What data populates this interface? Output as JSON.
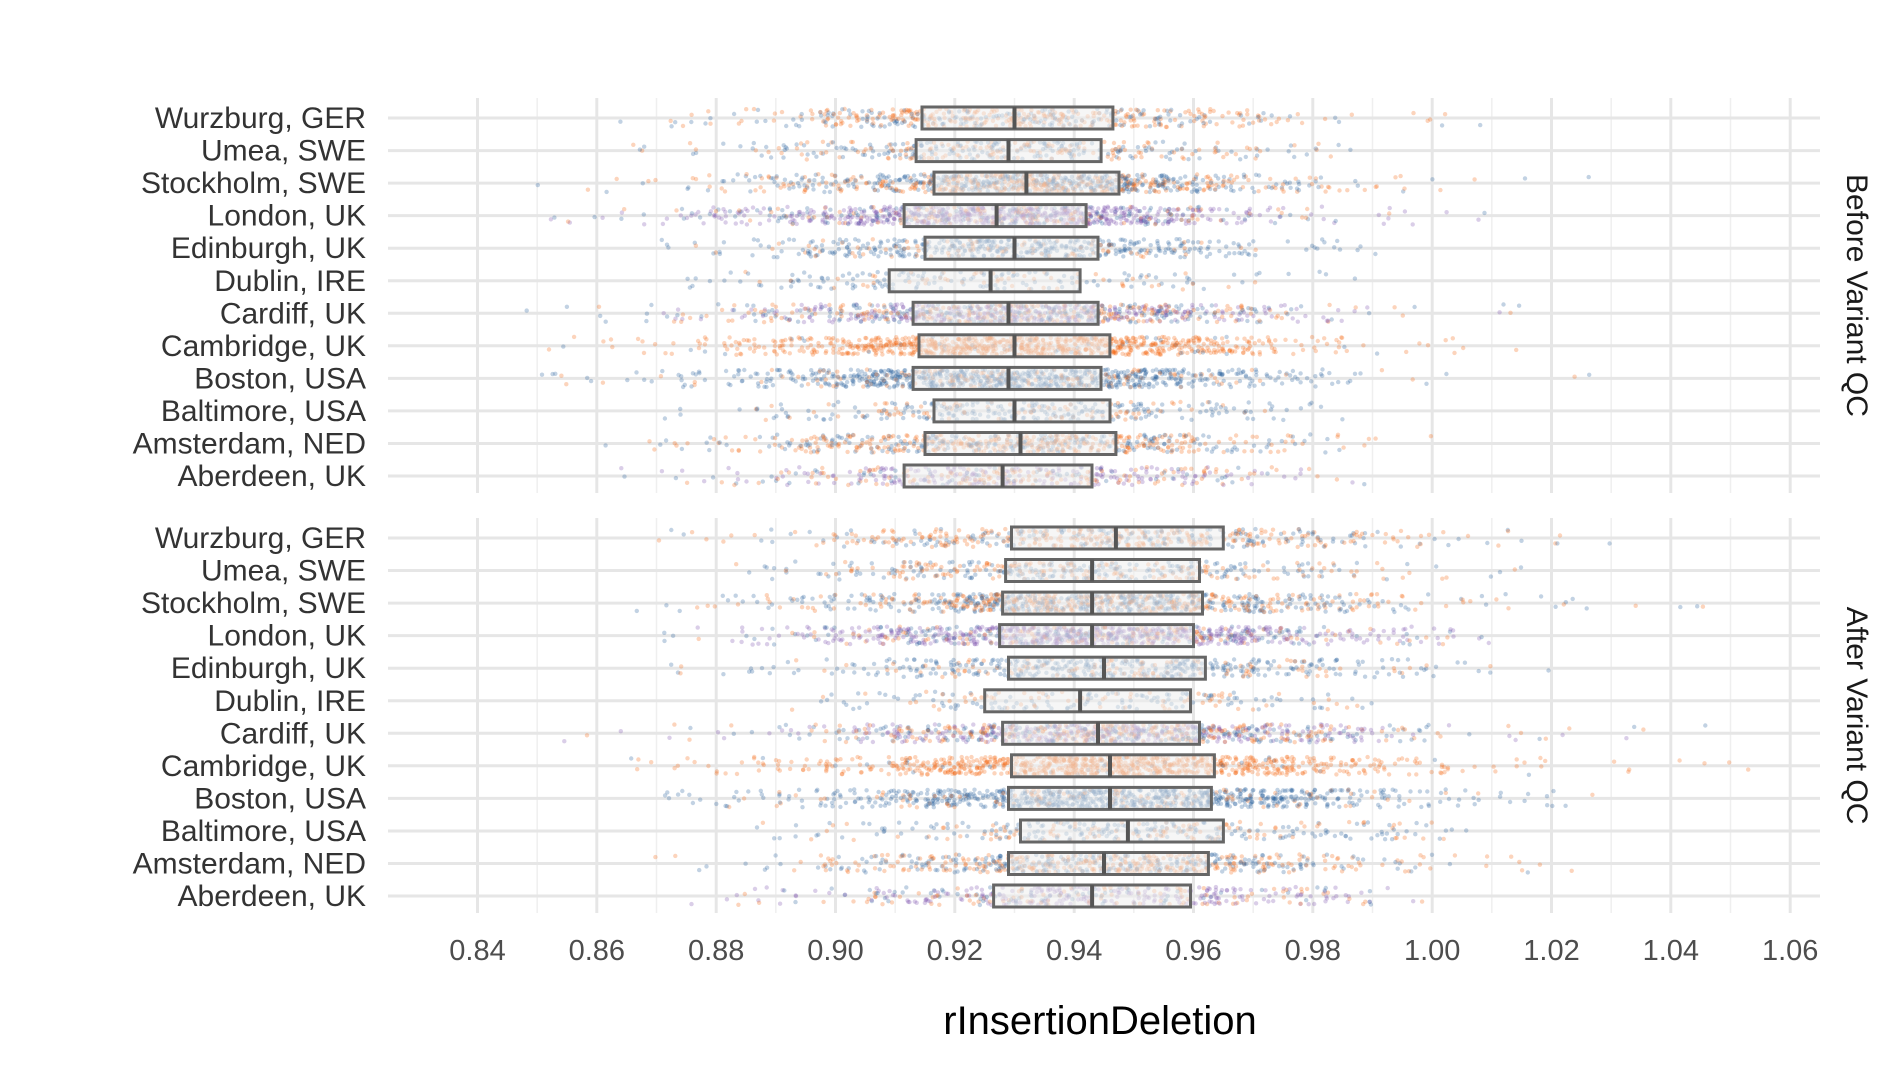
{
  "chart_data": {
    "type": "box-jitter",
    "xlabel": "rInsertionDeletion",
    "xlim": [
      0.825,
      1.065
    ],
    "xticks": [
      0.84,
      0.86,
      0.88,
      0.9,
      0.92,
      0.94,
      0.96,
      0.98,
      1.0,
      1.02,
      1.04,
      1.06
    ],
    "xtick_labels": [
      "0.84",
      "0.86",
      "0.88",
      "0.90",
      "0.92",
      "0.94",
      "0.96",
      "0.98",
      "1.00",
      "1.02",
      "1.04",
      "1.06"
    ],
    "grid": true,
    "categories": [
      "Wurzburg, GER",
      "Umea, SWE",
      "Stockholm, SWE",
      "London, UK",
      "Edinburgh, UK",
      "Dublin, IRE",
      "Cardiff, UK",
      "Cambridge, UK",
      "Boston, USA",
      "Baltimore, USA",
      "Amsterdam, NED",
      "Aberdeen, UK"
    ],
    "point_colors": {
      "orange": "#f5660f",
      "blue": "#245f9c",
      "purple": "#7a4fae"
    },
    "box_color": "#666666",
    "facets": [
      {
        "label": "Before Variant QC",
        "rows": [
          {
            "category": "Wurzburg, GER",
            "q1": 0.9145,
            "median": 0.93,
            "q3": 0.9465,
            "min": 0.85,
            "max": 1.02,
            "density": 0.55,
            "mix": {
              "orange": 0.6,
              "blue": 0.4,
              "purple": 0.0
            }
          },
          {
            "category": "Umea, SWE",
            "q1": 0.9135,
            "median": 0.929,
            "q3": 0.9445,
            "min": 0.865,
            "max": 0.99,
            "density": 0.4,
            "mix": {
              "orange": 0.4,
              "blue": 0.6,
              "purple": 0.0
            }
          },
          {
            "category": "Stockholm, SWE",
            "q1": 0.9165,
            "median": 0.932,
            "q3": 0.9475,
            "min": 0.85,
            "max": 1.03,
            "density": 0.95,
            "mix": {
              "orange": 0.45,
              "blue": 0.55,
              "purple": 0.0
            }
          },
          {
            "category": "London, UK",
            "q1": 0.9115,
            "median": 0.927,
            "q3": 0.942,
            "min": 0.852,
            "max": 1.01,
            "density": 1.0,
            "mix": {
              "orange": 0.15,
              "blue": 0.2,
              "purple": 0.65
            }
          },
          {
            "category": "Edinburgh, UK",
            "q1": 0.915,
            "median": 0.93,
            "q3": 0.944,
            "min": 0.86,
            "max": 1.0,
            "density": 0.55,
            "mix": {
              "orange": 0.2,
              "blue": 0.8,
              "purple": 0.0
            }
          },
          {
            "category": "Dublin, IRE",
            "q1": 0.909,
            "median": 0.926,
            "q3": 0.941,
            "min": 0.868,
            "max": 0.99,
            "density": 0.22,
            "mix": {
              "orange": 0.3,
              "blue": 0.7,
              "purple": 0.0
            }
          },
          {
            "category": "Cardiff, UK",
            "q1": 0.913,
            "median": 0.929,
            "q3": 0.944,
            "min": 0.845,
            "max": 1.015,
            "density": 0.95,
            "mix": {
              "orange": 0.3,
              "blue": 0.3,
              "purple": 0.4
            }
          },
          {
            "category": "Cambridge, UK",
            "q1": 0.914,
            "median": 0.93,
            "q3": 0.946,
            "min": 0.85,
            "max": 1.02,
            "density": 1.0,
            "mix": {
              "orange": 0.95,
              "blue": 0.05,
              "purple": 0.0
            }
          },
          {
            "category": "Boston, USA",
            "q1": 0.913,
            "median": 0.929,
            "q3": 0.9445,
            "min": 0.84,
            "max": 1.03,
            "density": 1.0,
            "mix": {
              "orange": 0.15,
              "blue": 0.85,
              "purple": 0.0
            }
          },
          {
            "category": "Baltimore, USA",
            "q1": 0.9165,
            "median": 0.93,
            "q3": 0.946,
            "min": 0.87,
            "max": 1.0,
            "density": 0.35,
            "mix": {
              "orange": 0.3,
              "blue": 0.7,
              "purple": 0.0
            }
          },
          {
            "category": "Amsterdam, NED",
            "q1": 0.915,
            "median": 0.931,
            "q3": 0.947,
            "min": 0.86,
            "max": 1.0,
            "density": 0.7,
            "mix": {
              "orange": 0.55,
              "blue": 0.45,
              "purple": 0.0
            }
          },
          {
            "category": "Aberdeen, UK",
            "q1": 0.9115,
            "median": 0.928,
            "q3": 0.943,
            "min": 0.86,
            "max": 0.99,
            "density": 0.45,
            "mix": {
              "orange": 0.3,
              "blue": 0.2,
              "purple": 0.5
            }
          }
        ]
      },
      {
        "label": "After Variant QC",
        "rows": [
          {
            "category": "Wurzburg, GER",
            "q1": 0.9295,
            "median": 0.947,
            "q3": 0.965,
            "min": 0.87,
            "max": 1.03,
            "density": 0.55,
            "mix": {
              "orange": 0.6,
              "blue": 0.4,
              "purple": 0.0
            }
          },
          {
            "category": "Umea, SWE",
            "q1": 0.9285,
            "median": 0.943,
            "q3": 0.961,
            "min": 0.88,
            "max": 1.02,
            "density": 0.45,
            "mix": {
              "orange": 0.4,
              "blue": 0.6,
              "purple": 0.0
            }
          },
          {
            "category": "Stockholm, SWE",
            "q1": 0.928,
            "median": 0.943,
            "q3": 0.9615,
            "min": 0.86,
            "max": 1.05,
            "density": 0.95,
            "mix": {
              "orange": 0.45,
              "blue": 0.55,
              "purple": 0.0
            }
          },
          {
            "category": "London, UK",
            "q1": 0.9275,
            "median": 0.943,
            "q3": 0.96,
            "min": 0.865,
            "max": 1.01,
            "density": 1.0,
            "mix": {
              "orange": 0.15,
              "blue": 0.2,
              "purple": 0.65
            }
          },
          {
            "category": "Edinburgh, UK",
            "q1": 0.929,
            "median": 0.945,
            "q3": 0.962,
            "min": 0.87,
            "max": 1.02,
            "density": 0.55,
            "mix": {
              "orange": 0.2,
              "blue": 0.8,
              "purple": 0.0
            }
          },
          {
            "category": "Dublin, IRE",
            "q1": 0.925,
            "median": 0.941,
            "q3": 0.9595,
            "min": 0.89,
            "max": 0.99,
            "density": 0.22,
            "mix": {
              "orange": 0.3,
              "blue": 0.7,
              "purple": 0.0
            }
          },
          {
            "category": "Cardiff, UK",
            "q1": 0.928,
            "median": 0.944,
            "q3": 0.961,
            "min": 0.845,
            "max": 1.05,
            "density": 0.95,
            "mix": {
              "orange": 0.3,
              "blue": 0.3,
              "purple": 0.4
            }
          },
          {
            "category": "Cambridge, UK",
            "q1": 0.9295,
            "median": 0.946,
            "q3": 0.9635,
            "min": 0.86,
            "max": 1.055,
            "density": 1.0,
            "mix": {
              "orange": 0.95,
              "blue": 0.05,
              "purple": 0.0
            }
          },
          {
            "category": "Boston, USA",
            "q1": 0.929,
            "median": 0.946,
            "q3": 0.963,
            "min": 0.87,
            "max": 1.03,
            "density": 1.0,
            "mix": {
              "orange": 0.15,
              "blue": 0.85,
              "purple": 0.0
            }
          },
          {
            "category": "Baltimore, USA",
            "q1": 0.931,
            "median": 0.949,
            "q3": 0.965,
            "min": 0.88,
            "max": 1.01,
            "density": 0.35,
            "mix": {
              "orange": 0.3,
              "blue": 0.7,
              "purple": 0.0
            }
          },
          {
            "category": "Amsterdam, NED",
            "q1": 0.929,
            "median": 0.945,
            "q3": 0.9625,
            "min": 0.869,
            "max": 1.03,
            "density": 0.7,
            "mix": {
              "orange": 0.55,
              "blue": 0.45,
              "purple": 0.0
            }
          },
          {
            "category": "Aberdeen, UK",
            "q1": 0.9265,
            "median": 0.943,
            "q3": 0.9595,
            "min": 0.875,
            "max": 1.0,
            "density": 0.45,
            "mix": {
              "orange": 0.3,
              "blue": 0.2,
              "purple": 0.5
            }
          }
        ]
      }
    ]
  }
}
